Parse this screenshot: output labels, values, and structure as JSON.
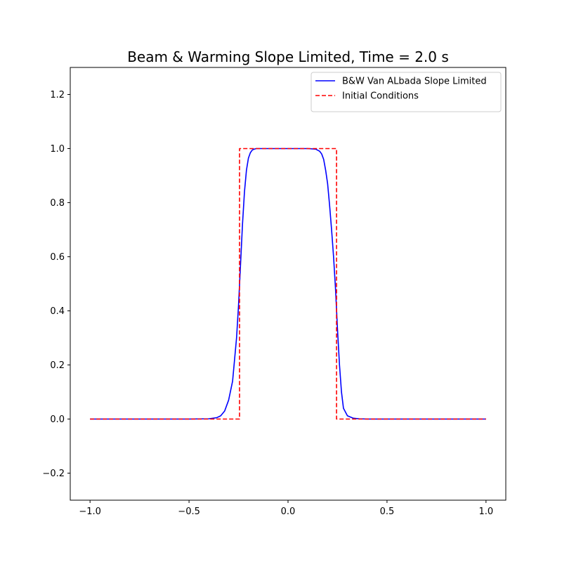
{
  "chart_data": {
    "type": "line",
    "title": "Beam & Warming Slope Limited, Time = 2.0 s",
    "xlabel": "",
    "ylabel": "",
    "xlim": [
      -1.1,
      1.1
    ],
    "ylim": [
      -0.3,
      1.3
    ],
    "xticks": [
      -1.0,
      -0.5,
      0.0,
      0.5,
      1.0
    ],
    "xtick_labels": [
      "−1.0",
      "−0.5",
      "0.0",
      "0.5",
      "1.0"
    ],
    "yticks": [
      -0.2,
      0.0,
      0.2,
      0.4,
      0.6,
      0.8,
      1.0,
      1.2
    ],
    "ytick_labels": [
      "−0.2",
      "0.0",
      "0.2",
      "0.4",
      "0.6",
      "0.8",
      "1.0",
      "1.2"
    ],
    "grid": false,
    "legend_position": "top-right",
    "series": [
      {
        "name": "B&W Van ALbada Slope Limited",
        "color": "#0000ff",
        "style": "solid",
        "x": [
          -1.0,
          -0.5,
          -0.4,
          -0.36,
          -0.34,
          -0.32,
          -0.3,
          -0.28,
          -0.26,
          -0.25,
          -0.24,
          -0.23,
          -0.22,
          -0.21,
          -0.2,
          -0.19,
          -0.18,
          -0.17,
          -0.16,
          -0.14,
          -0.1,
          0.0,
          0.1,
          0.14,
          0.16,
          0.17,
          0.18,
          0.19,
          0.2,
          0.21,
          0.22,
          0.23,
          0.24,
          0.25,
          0.26,
          0.27,
          0.28,
          0.3,
          0.33,
          0.36,
          0.4,
          0.5,
          1.0
        ],
        "y": [
          0.0,
          0.0,
          0.001,
          0.005,
          0.012,
          0.03,
          0.07,
          0.14,
          0.3,
          0.42,
          0.57,
          0.72,
          0.84,
          0.92,
          0.965,
          0.985,
          0.995,
          0.998,
          1.0,
          1.0,
          1.0,
          1.0,
          1.0,
          0.998,
          0.99,
          0.98,
          0.96,
          0.92,
          0.87,
          0.79,
          0.7,
          0.6,
          0.48,
          0.33,
          0.2,
          0.1,
          0.04,
          0.012,
          0.003,
          0.001,
          0.0,
          0.0,
          0.0
        ]
      },
      {
        "name": "Initial Conditions",
        "color": "#ff0000",
        "style": "dashed",
        "x": [
          -1.0,
          -0.245,
          -0.245,
          0.245,
          0.245,
          1.0
        ],
        "y": [
          0.0,
          0.0,
          1.0,
          1.0,
          0.0,
          0.0
        ]
      }
    ]
  }
}
